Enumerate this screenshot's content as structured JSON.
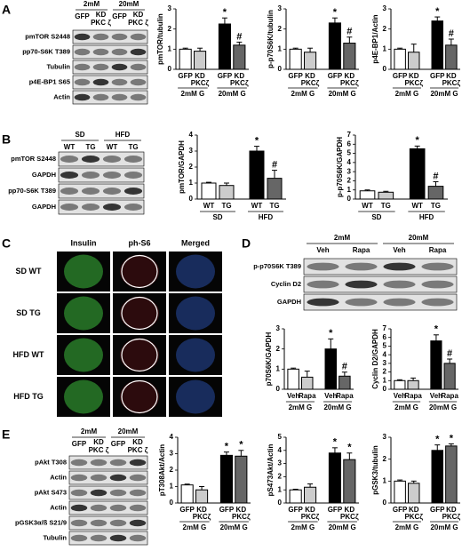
{
  "figure": {
    "panel_labels": [
      "A",
      "B",
      "C",
      "D",
      "E"
    ]
  },
  "blots": [
    {
      "groups": [
        "2mM",
        "20mM"
      ],
      "lanes": [
        "GFP",
        "KD",
        "GFP",
        "KD"
      ],
      "lane_sublabels": [
        null,
        "PKC ζ",
        null,
        "PKC ζ"
      ],
      "rows": [
        "pmTOR S2448",
        "pp70-S6K T389",
        "Tubulin",
        "p4E-BP1 S65",
        "Actin"
      ]
    },
    {
      "groups": [
        "SD",
        "HFD"
      ],
      "lanes": [
        "WT",
        "TG",
        "WT",
        "TG"
      ],
      "lane_sublabels": [
        null,
        null,
        null,
        null
      ],
      "rows": [
        "pmTOR S2448",
        "GAPDH",
        "pp70-S6K T389",
        "GAPDH"
      ]
    },
    {
      "groups": [
        "2mM",
        "20mM"
      ],
      "lanes": [
        "Veh",
        "Rapa",
        "Veh",
        "Rapa"
      ],
      "lane_sublabels": [
        null,
        null,
        null,
        null
      ],
      "rows": [
        "p-p70S6K T389",
        "Cyclin D2",
        "GAPDH"
      ]
    },
    {
      "groups": [
        "2mM",
        "20mM"
      ],
      "lanes": [
        "GFP",
        "KD",
        "GFP",
        "KD"
      ],
      "lane_sublabels": [
        null,
        "PKC ζ",
        null,
        "PKC ζ"
      ],
      "rows": [
        "pAkt T308",
        "Actin",
        "pAkt S473",
        "Actin",
        "pGSK3α/ß S21/9",
        "Tubulin"
      ]
    }
  ],
  "imaging": {
    "columns": [
      "Insulin",
      "ph-S6",
      "Merged"
    ],
    "rows": [
      "SD WT",
      "SD TG",
      "HFD WT",
      "HFD TG"
    ]
  },
  "chart_data": [
    {
      "type": "bar",
      "y_label": "pmTOR/tubulin",
      "categories": [
        "GFP",
        "KD",
        "GFP",
        "KD"
      ],
      "category_sublabels": [
        null,
        "PKCζ",
        null,
        "PKCζ"
      ],
      "groups": [
        "2mM G",
        "20mM G"
      ],
      "values": [
        1.0,
        0.9,
        2.25,
        1.2
      ],
      "errors": [
        0.05,
        0.15,
        0.3,
        0.15
      ],
      "annotations": [
        null,
        null,
        "*",
        "#"
      ],
      "colors": [
        "#ffffff",
        "#cccccc",
        "#000000",
        "#666666"
      ],
      "ylim": [
        0,
        3
      ],
      "yticks": [
        0,
        1,
        2,
        3
      ]
    },
    {
      "type": "bar",
      "y_label": "p-p70S6K/tubulin",
      "categories": [
        "GFP",
        "KD",
        "GFP",
        "KD"
      ],
      "category_sublabels": [
        null,
        "PKCζ",
        null,
        "PKCζ"
      ],
      "groups": [
        "2mM G",
        "20mM G"
      ],
      "values": [
        1.0,
        0.85,
        2.3,
        1.3
      ],
      "errors": [
        0.05,
        0.2,
        0.25,
        0.3
      ],
      "annotations": [
        null,
        null,
        "*",
        "#"
      ],
      "colors": [
        "#ffffff",
        "#cccccc",
        "#000000",
        "#666666"
      ],
      "ylim": [
        0,
        3
      ],
      "yticks": [
        0,
        1,
        2,
        3
      ]
    },
    {
      "type": "bar",
      "y_label": "p4E-BP1/Actin",
      "categories": [
        "GFP",
        "KD",
        "GFP",
        "KD"
      ],
      "category_sublabels": [
        null,
        "PKCζ",
        null,
        "PKCζ"
      ],
      "groups": [
        "2mM G",
        "20mM G"
      ],
      "values": [
        1.0,
        0.85,
        2.4,
        1.2
      ],
      "errors": [
        0.05,
        0.4,
        0.2,
        0.3
      ],
      "annotations": [
        null,
        null,
        "*",
        "#"
      ],
      "colors": [
        "#ffffff",
        "#cccccc",
        "#000000",
        "#666666"
      ],
      "ylim": [
        0,
        3
      ],
      "yticks": [
        0,
        1,
        2,
        3
      ]
    },
    {
      "type": "bar",
      "y_label": "pmTOR/GAPDH",
      "categories": [
        "WT",
        "TG",
        "WT",
        "TG"
      ],
      "category_sublabels": [
        null,
        null,
        null,
        null
      ],
      "groups": [
        "SD",
        "HFD"
      ],
      "values": [
        1.0,
        0.85,
        3.0,
        1.3
      ],
      "errors": [
        0.05,
        0.15,
        0.3,
        0.5
      ],
      "annotations": [
        null,
        null,
        "*",
        "#"
      ],
      "colors": [
        "#ffffff",
        "#cccccc",
        "#000000",
        "#666666"
      ],
      "ylim": [
        0,
        4
      ],
      "yticks": [
        0,
        1,
        2,
        3,
        4
      ]
    },
    {
      "type": "bar",
      "y_label": "p-p70S6K/GAPDH",
      "categories": [
        "WT",
        "TG",
        "WT",
        "TG"
      ],
      "category_sublabels": [
        null,
        null,
        null,
        null
      ],
      "groups": [
        "SD",
        "HFD"
      ],
      "values": [
        0.9,
        0.75,
        5.5,
        1.4
      ],
      "errors": [
        0.1,
        0.1,
        0.3,
        0.5
      ],
      "annotations": [
        null,
        null,
        "*",
        "#"
      ],
      "colors": [
        "#ffffff",
        "#cccccc",
        "#000000",
        "#666666"
      ],
      "ylim": [
        0,
        7
      ],
      "yticks": [
        0,
        1,
        2,
        3,
        4,
        5,
        6,
        7
      ]
    },
    {
      "type": "bar",
      "y_label": "p70S6K/GAPDH",
      "categories": [
        "Veh",
        "Rapa",
        "Veh",
        "Rapa"
      ],
      "category_sublabels": [
        null,
        null,
        null,
        null
      ],
      "groups": [
        "2mM G",
        "20mM G"
      ],
      "values": [
        1.0,
        0.6,
        2.0,
        0.65
      ],
      "errors": [
        0.05,
        0.3,
        0.5,
        0.2
      ],
      "annotations": [
        null,
        null,
        "*",
        "#"
      ],
      "colors": [
        "#ffffff",
        "#cccccc",
        "#000000",
        "#666666"
      ],
      "ylim": [
        0,
        3
      ],
      "yticks": [
        0,
        1,
        2,
        3
      ]
    },
    {
      "type": "bar",
      "y_label": "Cyclin D2/GAPDH",
      "categories": [
        "Veh",
        "Rapa",
        "Veh",
        "Rapa"
      ],
      "category_sublabels": [
        null,
        null,
        null,
        null
      ],
      "groups": [
        "2mM G",
        "20mM G"
      ],
      "values": [
        1.0,
        1.0,
        5.6,
        3.0
      ],
      "errors": [
        0.1,
        0.3,
        0.7,
        0.5
      ],
      "annotations": [
        null,
        null,
        "*",
        "#"
      ],
      "colors": [
        "#ffffff",
        "#cccccc",
        "#000000",
        "#666666"
      ],
      "ylim": [
        0,
        7
      ],
      "yticks": [
        0,
        1,
        2,
        3,
        4,
        5,
        6,
        7
      ]
    },
    {
      "type": "bar",
      "y_label": "pT308Akt/Actin",
      "categories": [
        "GFP",
        "KD",
        "GFP",
        "KD"
      ],
      "category_sublabels": [
        null,
        "PKCζ",
        null,
        "PKCζ"
      ],
      "groups": [
        "2mM G",
        "20mM G"
      ],
      "values": [
        1.1,
        0.8,
        2.9,
        2.85
      ],
      "errors": [
        0.05,
        0.2,
        0.2,
        0.35
      ],
      "annotations": [
        null,
        null,
        "*",
        "*"
      ],
      "colors": [
        "#ffffff",
        "#cccccc",
        "#000000",
        "#666666"
      ],
      "ylim": [
        0,
        4
      ],
      "yticks": [
        0,
        1,
        2,
        3,
        4
      ]
    },
    {
      "type": "bar",
      "y_label": "pS473Akt/Actin",
      "categories": [
        "GFP",
        "KD",
        "GFP",
        "KD"
      ],
      "category_sublabels": [
        null,
        "PKCζ",
        null,
        "PKCζ"
      ],
      "groups": [
        "2mM G",
        "20mM G"
      ],
      "values": [
        1.0,
        1.2,
        3.8,
        3.3
      ],
      "errors": [
        0.05,
        0.25,
        0.4,
        0.5
      ],
      "annotations": [
        null,
        null,
        "*",
        "*"
      ],
      "colors": [
        "#ffffff",
        "#cccccc",
        "#000000",
        "#666666"
      ],
      "ylim": [
        0,
        5
      ],
      "yticks": [
        0,
        1,
        2,
        3,
        4,
        5
      ]
    },
    {
      "type": "bar",
      "y_label": "pGSK3/tubulin",
      "categories": [
        "GFP",
        "KD",
        "GFP",
        "KD"
      ],
      "category_sublabels": [
        null,
        "PKCζ",
        null,
        "PKCζ"
      ],
      "groups": [
        "2mM G",
        "20mM G"
      ],
      "values": [
        1.0,
        0.9,
        2.4,
        2.6
      ],
      "errors": [
        0.05,
        0.1,
        0.25,
        0.1
      ],
      "annotations": [
        null,
        null,
        "*",
        "*"
      ],
      "colors": [
        "#ffffff",
        "#cccccc",
        "#000000",
        "#666666"
      ],
      "ylim": [
        0,
        3
      ],
      "yticks": [
        0,
        1,
        2,
        3
      ]
    }
  ]
}
